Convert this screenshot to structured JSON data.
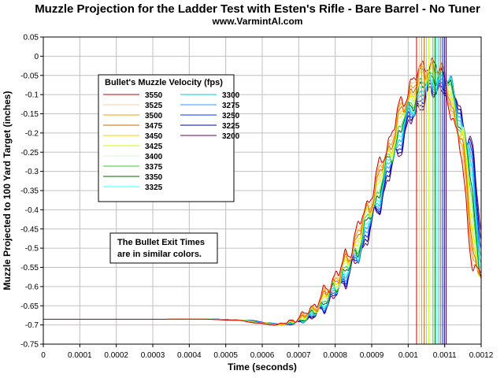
{
  "chart_data": {
    "type": "line",
    "title": "Muzzle Projection for the Ladder Test with Esten's Rifle - Bare Barrel - No Tuner",
    "subtitle": "www.VarmintAl.com",
    "xlabel": "Time (seconds)",
    "ylabel": "Muzzle Projected to 100 Yard Target (inches)",
    "xlim": [
      0,
      0.0012
    ],
    "ylim": [
      -0.75,
      0.05
    ],
    "x_ticks": [
      "0",
      "0.0001",
      "0.0002",
      "0.0003",
      "0.0004",
      "0.0005",
      "0.0006",
      "0.0007",
      "0.0008",
      "0.0009",
      "0.001",
      "0.0011",
      "0.0012"
    ],
    "y_ticks": [
      "0.05",
      "0",
      "-0.05",
      "-0.1",
      "-0.15",
      "-0.2",
      "-0.25",
      "-0.3",
      "-0.35",
      "-0.4",
      "-0.45",
      "-0.5",
      "-0.55",
      "-0.6",
      "-0.65",
      "-0.7",
      "-0.75"
    ],
    "grid": true,
    "legend": {
      "title": "Bullet's Muzzle Velocity (fps)",
      "placement": "upper-left"
    },
    "note": [
      "The Bullet Exit Times",
      "are in similar colors."
    ],
    "profile": {
      "x": [
        0,
        0.00034,
        0.00045,
        0.00055,
        0.0006,
        0.00065,
        0.0007,
        0.00075,
        0.0008,
        0.00085,
        0.0009,
        0.00095,
        0.001,
        0.00105,
        0.0011,
        0.00115,
        0.0012
      ],
      "y": [
        -0.685,
        -0.685,
        -0.685,
        -0.688,
        -0.695,
        -0.7,
        -0.69,
        -0.66,
        -0.6,
        -0.52,
        -0.4,
        -0.26,
        -0.13,
        -0.05,
        -0.04,
        -0.2,
        -0.56
      ]
    },
    "series": [
      {
        "name": "3550",
        "color": "#cc0000",
        "exit_time": 0.001023,
        "peak_y": -0.018
      },
      {
        "name": "3525",
        "color": "#ffcc99",
        "exit_time": 0.00103,
        "peak_y": -0.022
      },
      {
        "name": "3500",
        "color": "#ff9900",
        "exit_time": 0.001037,
        "peak_y": -0.026
      },
      {
        "name": "3475",
        "color": "#cc6600",
        "exit_time": 0.001044,
        "peak_y": -0.03
      },
      {
        "name": "3450",
        "color": "#ffcc00",
        "exit_time": 0.00105,
        "peak_y": -0.034
      },
      {
        "name": "3425",
        "color": "#ccff00",
        "exit_time": 0.001056,
        "peak_y": -0.038
      },
      {
        "name": "3400",
        "color": "#ccffcc",
        "exit_time": 0.001062,
        "peak_y": -0.042
      },
      {
        "name": "3375",
        "color": "#33cc33",
        "exit_time": 0.001068,
        "peak_y": -0.047
      },
      {
        "name": "3350",
        "color": "#006600",
        "exit_time": 0.001074,
        "peak_y": -0.052
      },
      {
        "name": "3325",
        "color": "#33ffff",
        "exit_time": 0.001079,
        "peak_y": -0.058
      },
      {
        "name": "3300",
        "color": "#00cccc",
        "exit_time": 0.001084,
        "peak_y": -0.064
      },
      {
        "name": "3275",
        "color": "#3399ff",
        "exit_time": 0.001089,
        "peak_y": -0.07
      },
      {
        "name": "3250",
        "color": "#0033ff",
        "exit_time": 0.001094,
        "peak_y": -0.076
      },
      {
        "name": "3225",
        "color": "#000099",
        "exit_time": 0.001099,
        "peak_y": -0.082
      },
      {
        "name": "3200",
        "color": "#660066",
        "exit_time": 0.001104,
        "peak_y": -0.088
      }
    ]
  }
}
